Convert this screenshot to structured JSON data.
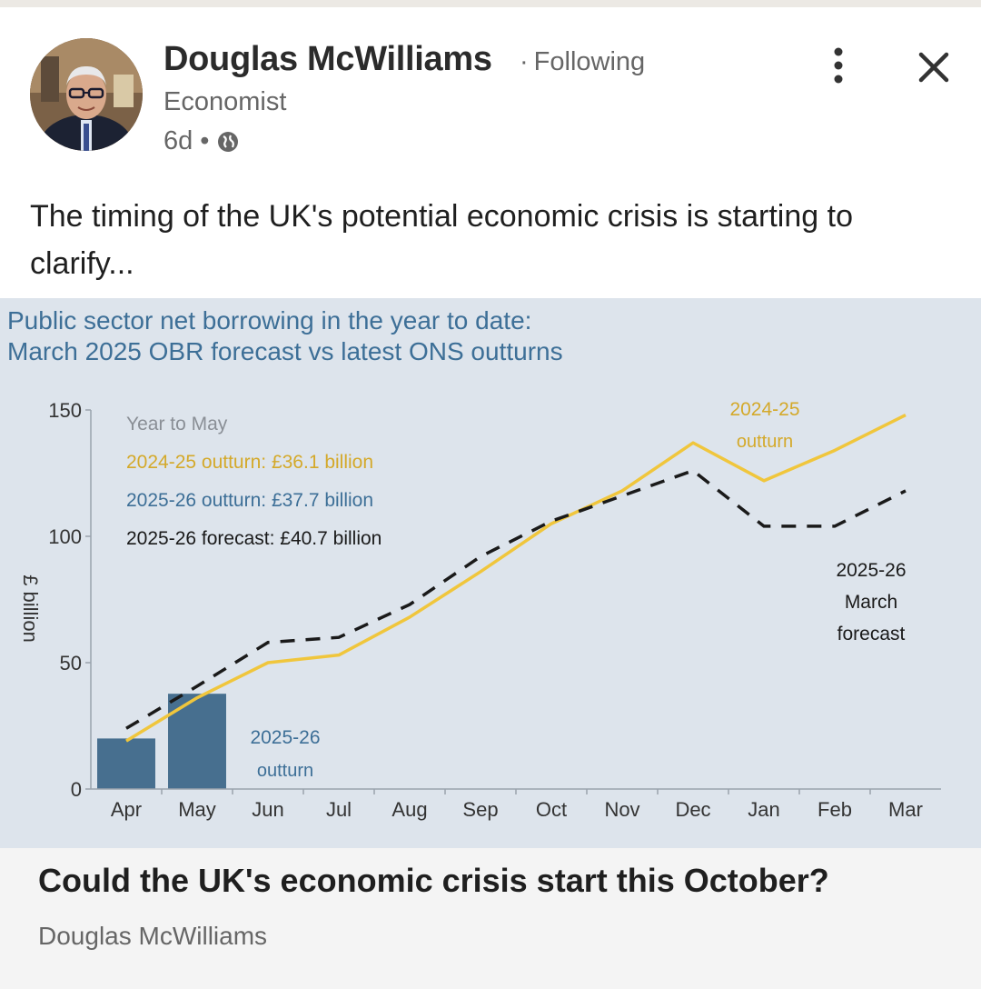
{
  "post": {
    "author_name": "Douglas McWilliams",
    "follow_status": "Following",
    "author_headline": "Economist",
    "time_ago": "6d",
    "text": "The timing of the UK's potential economic crisis is starting to clarify...",
    "icons": [
      "more-vertical-icon",
      "close-icon",
      "globe-icon"
    ]
  },
  "chart": {
    "title_line1": "Public sector net borrowing in the year to date:",
    "title_line2": "March 2025 OBR forecast vs latest ONS outturns",
    "colors": {
      "outturn_2024": "#f0c63c",
      "outturn_2025": "#476f8f",
      "forecast": "#1a1a1a",
      "background": "#dde4ec",
      "title": "#3d6f97"
    },
    "legend": {
      "heading": "Year to May",
      "line1": "2024-25 outturn: £36.1 billion",
      "line2": "2025-26 outturn: £37.7 billion",
      "line3": "2025-26 forecast: £40.7 billion"
    },
    "annotations": {
      "outturn_2024_a": "2024-25",
      "outturn_2024_b": "outturn",
      "outturn_2025_a": "2025-26",
      "outturn_2025_b": "outturn",
      "forecast_a": "2025-26",
      "forecast_b": "March",
      "forecast_c": "forecast"
    }
  },
  "chart_data": {
    "type": "line",
    "categories": [
      "Apr",
      "May",
      "Jun",
      "Jul",
      "Aug",
      "Sep",
      "Oct",
      "Nov",
      "Dec",
      "Jan",
      "Feb",
      "Mar"
    ],
    "ylabel": "£ billion",
    "ylim": [
      0,
      150
    ],
    "yticks": [
      0,
      50,
      100,
      150
    ],
    "series": [
      {
        "name": "2024-25 outturn",
        "style": "line",
        "values": [
          19,
          36.1,
          50,
          53,
          68,
          86,
          105,
          118,
          137,
          122,
          134,
          148
        ]
      },
      {
        "name": "2025-26 March forecast",
        "style": "dashed-line",
        "values": [
          24,
          40.7,
          58,
          60,
          73,
          92,
          106,
          116,
          126,
          104,
          104,
          118
        ]
      },
      {
        "name": "2025-26 outturn",
        "style": "bar",
        "values": [
          20,
          37.7,
          null,
          null,
          null,
          null,
          null,
          null,
          null,
          null,
          null,
          null
        ]
      }
    ]
  },
  "article": {
    "title": "Could the UK's economic crisis start this October?",
    "source": "Douglas McWilliams"
  }
}
